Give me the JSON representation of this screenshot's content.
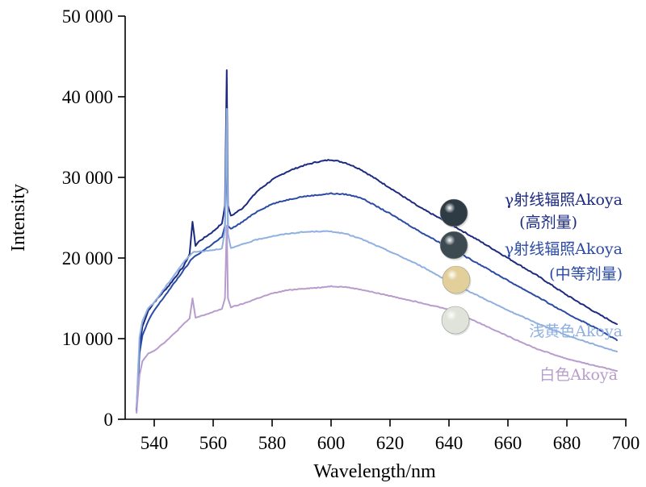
{
  "chart_data": {
    "type": "line",
    "title": "",
    "xlabel": "Wavelength/nm",
    "ylabel": "Intensity",
    "xlim": [
      532,
      700
    ],
    "ylim": [
      0,
      50000
    ],
    "x_ticks": [
      540,
      560,
      580,
      600,
      620,
      640,
      660,
      680,
      700
    ],
    "x_tick_labels": [
      "540",
      "560",
      "580",
      "600",
      "620",
      "640",
      "660",
      "680",
      "700"
    ],
    "y_ticks": [
      0,
      10000,
      20000,
      30000,
      40000,
      50000
    ],
    "y_tick_labels": [
      "0",
      "10 000",
      "20 000",
      "30 000",
      "40 000",
      "50 000"
    ],
    "grid": false,
    "legend_position": "right, next to each curve",
    "series": [
      {
        "name": "γ射线辐照Akoya(高剂量)",
        "label_lines": [
          "γ射线辐照Akoya",
          "(高剂量)"
        ],
        "color": "#1c2a80",
        "pearl_color": "#2e3b44",
        "x": [
          534,
          535,
          536,
          538,
          540,
          545,
          550,
          552,
          553,
          554,
          555,
          560,
          563,
          564,
          564.6,
          565,
          566,
          570,
          575,
          580,
          585,
          590,
          595,
          600,
          605,
          610,
          620,
          630,
          640,
          650,
          660,
          670,
          680,
          690,
          697
        ],
        "y": [
          1200,
          9000,
          11500,
          13500,
          14500,
          16600,
          19000,
          20500,
          24500,
          21500,
          22000,
          23300,
          24300,
          26500,
          43300,
          26500,
          25200,
          26200,
          28300,
          29700,
          30700,
          31400,
          31900,
          32200,
          31800,
          31000,
          28700,
          26300,
          24300,
          22200,
          20000,
          17800,
          15400,
          13200,
          11800
        ]
      },
      {
        "name": "γ射线辐照Akoya(中等剂量)",
        "label_lines": [
          "γ射线辐照Akoya",
          "(中等剂量)"
        ],
        "color": "#2a4aa6",
        "pearl_color": "#3d4a52",
        "x": [
          534,
          535,
          536,
          538,
          540,
          545,
          550,
          553,
          555,
          560,
          563,
          564,
          564.6,
          565,
          566,
          570,
          575,
          580,
          585,
          590,
          595,
          600,
          605,
          610,
          620,
          630,
          640,
          650,
          660,
          670,
          680,
          690,
          697
        ],
        "y": [
          1000,
          8200,
          10400,
          12200,
          13500,
          16000,
          18500,
          20000,
          20500,
          21800,
          22600,
          24000,
          34000,
          24000,
          23600,
          24500,
          25800,
          26700,
          27200,
          27600,
          27800,
          28000,
          27900,
          27500,
          25500,
          23300,
          21300,
          19300,
          17200,
          15200,
          13100,
          11300,
          9800
        ]
      },
      {
        "name": "浅黄色Akoya",
        "label_lines": [
          "浅黄色Akoya"
        ],
        "color": "#8fb0e0",
        "pearl_color": "#e3cf9a",
        "x": [
          534,
          535,
          536,
          538,
          540,
          545,
          550,
          553,
          555,
          560,
          563,
          564,
          564.6,
          565,
          566,
          570,
          575,
          580,
          585,
          590,
          595,
          600,
          605,
          610,
          620,
          630,
          640,
          650,
          660,
          670,
          680,
          690,
          697
        ],
        "y": [
          1500,
          10200,
          12200,
          13800,
          14500,
          17000,
          19500,
          20700,
          20800,
          21000,
          21200,
          23500,
          38500,
          23000,
          21200,
          21700,
          22300,
          22700,
          23000,
          23200,
          23300,
          23300,
          23000,
          22400,
          20800,
          19100,
          17100,
          15300,
          13500,
          11900,
          10400,
          9200,
          8400
        ]
      },
      {
        "name": "白色Akoya",
        "label_lines": [
          "白色Akoya"
        ],
        "color": "#b79ccd",
        "pearl_color": "#dfe3da",
        "x": [
          534,
          535,
          536,
          538,
          540,
          545,
          550,
          552,
          553,
          554,
          555,
          560,
          563,
          564,
          564.6,
          565,
          566,
          570,
          575,
          580,
          585,
          590,
          595,
          600,
          605,
          610,
          620,
          630,
          640,
          650,
          660,
          670,
          680,
          690,
          697
        ],
        "y": [
          800,
          5500,
          7200,
          8200,
          8500,
          10000,
          11800,
          12500,
          15000,
          12600,
          12700,
          13300,
          13700,
          15000,
          24000,
          15000,
          13900,
          14300,
          15000,
          15600,
          16000,
          16200,
          16300,
          16500,
          16400,
          16100,
          15300,
          14500,
          13600,
          12000,
          10300,
          8700,
          7500,
          6600,
          6000
        ]
      }
    ]
  }
}
